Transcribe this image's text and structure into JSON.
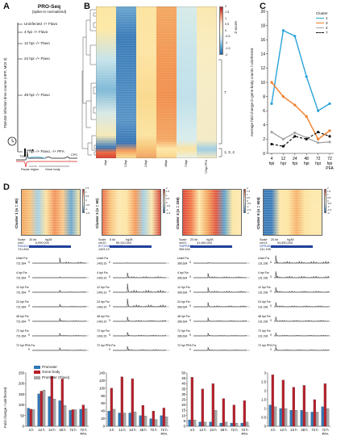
{
  "panel_a": {
    "letter": "A",
    "title": "PRO-Seq",
    "subtitle": "(spike-in normalized)",
    "vertical_label": "TMAGE infection time course (HFF, MOI 3)",
    "timepoints": [
      "Uninfected -/+ Flavo",
      "4 hpi -/+ Flavo",
      "12 hpi -/+ Flavo",
      "24 hpi -/+ Flavo",
      "48 hpi -/+ Flavo",
      "72 hpi -/+ Flavo, -/+ PFA"
    ],
    "tss": "TSS",
    "cps": "CPS",
    "pause_region": "Pause region",
    "gene_body": "Gene body"
  },
  "panel_b": {
    "letter": "B",
    "columns": [
      "4hpi",
      "12hpi",
      "24hpi",
      "48hpi",
      "72hpi",
      "72hpi PFA"
    ],
    "colorbar_label": "Z-score",
    "colorbar_ticks": [
      "2",
      "1.5",
      "1",
      "0.5",
      "0",
      "-0.5",
      "-1",
      "-1.5",
      "-2"
    ],
    "cluster_labels": [
      "7",
      "1, 3, 4"
    ]
  },
  "panel_c": {
    "letter": "C",
    "ylabel": "Average fold change in gene body counts / uninfected",
    "legend_title": "Cluster",
    "colors": {
      "c1": "#2aa3d8",
      "c3": "#f07f2a",
      "c4": "#a6a6a6",
      "c7": "#111111"
    }
  },
  "chart_data": [
    {
      "type": "line",
      "x": [
        "4 hpi",
        "12 hpi",
        "24 hpi",
        "48 hpi",
        "72 hpi",
        "72 hpi PFA"
      ],
      "ylim": [
        0,
        20
      ],
      "yticks": [
        "0",
        "2",
        "4",
        "6",
        "8",
        "10",
        "12",
        "14",
        "16",
        "18",
        "20"
      ],
      "series": [
        {
          "name": "1",
          "values": [
            7.0,
            17.3,
            16.5,
            10.8,
            6.0,
            7.0
          ],
          "color": "#2aa3d8",
          "dash": false
        },
        {
          "name": "3",
          "values": [
            10.0,
            8.0,
            6.8,
            5.2,
            2.0,
            3.2
          ],
          "color": "#f07f2a",
          "dash": false
        },
        {
          "name": "4",
          "values": [
            3.0,
            2.0,
            2.9,
            2.2,
            1.5,
            1.6
          ],
          "color": "#a6a6a6",
          "dash": false
        },
        {
          "name": "7",
          "values": [
            1.3,
            1.0,
            2.4,
            2.0,
            3.0,
            2.4
          ],
          "color": "#111111",
          "dash": true
        }
      ]
    },
    {
      "type": "bar",
      "categories": [
        "4 h",
        "12 h",
        "24 h",
        "48 h",
        "72 h",
        "72 h PFA"
      ],
      "ylim": [
        0,
        250
      ],
      "yticks": [
        "0",
        "50",
        "100",
        "150",
        "200",
        "250"
      ],
      "series": [
        {
          "name": "Promoter",
          "values": [
            85,
            152,
            140,
            120,
            75,
            80
          ]
        },
        {
          "name": "Gene body",
          "values": [
            80,
            165,
            235,
            222,
            78,
            100
          ]
        },
        {
          "name": "Promoter (Flavo)",
          "values": [
            78,
            170,
            128,
            98,
            78,
            82
          ]
        }
      ]
    },
    {
      "type": "bar",
      "categories": [
        "4 h",
        "12 h",
        "24 h",
        "48 h",
        "72 h",
        "72 h PFA"
      ],
      "ylim": [
        0,
        140
      ],
      "yticks": [
        "0",
        "20",
        "40",
        "60",
        "80",
        "100",
        "120",
        "140"
      ],
      "series": [
        {
          "name": "Promoter",
          "values": [
            40,
            35,
            35,
            28,
            20,
            28
          ]
        },
        {
          "name": "Gene body",
          "values": [
            100,
            130,
            125,
            55,
            40,
            48
          ]
        },
        {
          "name": "Promoter (Flavo)",
          "values": [
            45,
            35,
            38,
            27,
            18,
            25
          ]
        }
      ]
    },
    {
      "type": "bar",
      "categories": [
        "4 h",
        "12 h",
        "24 h",
        "48 h",
        "72 h",
        "72 h PFA"
      ],
      "ylim": [
        0,
        50
      ],
      "yticks": [
        "0",
        "5",
        "10",
        "15",
        "20",
        "25",
        "30",
        "35",
        "40",
        "45",
        "50"
      ],
      "series": [
        {
          "name": "Promoter",
          "values": [
            6,
            4,
            4,
            3,
            3,
            3
          ]
        },
        {
          "name": "Gene body",
          "values": [
            46,
            35,
            40,
            26,
            20,
            24
          ]
        },
        {
          "name": "Promoter (Flavo)",
          "values": [
            6,
            4,
            15,
            4,
            3,
            4
          ]
        }
      ]
    },
    {
      "type": "bar",
      "categories": [
        "4 h",
        "12 h",
        "24 h",
        "48 h",
        "72 h",
        "72 h PFA"
      ],
      "ylim": [
        0,
        3
      ],
      "yticks": [
        "0",
        "0.5",
        "1",
        "1.5",
        "2",
        "2.5",
        "3"
      ],
      "series": [
        {
          "name": "Promoter",
          "values": [
            1.2,
            1.0,
            0.9,
            0.9,
            0.8,
            1.1
          ]
        },
        {
          "name": "Gene body",
          "values": [
            2.9,
            2.6,
            2.2,
            2.3,
            1.5,
            2.4
          ]
        },
        {
          "name": "Promoter (Flavo)",
          "values": [
            1.1,
            1.0,
            0.9,
            0.8,
            0.8,
            1.0
          ]
        }
      ]
    }
  ],
  "panel_d": {
    "letter": "D",
    "clusters": [
      {
        "label": "Cluster 1 (n = 90)",
        "gene": "RSAD2/RSAD2",
        "refgene": "RSAD2/NM_080657",
        "loc": "chr2",
        "scale": "10 kb",
        "genome": "hg38",
        "coord": "6,990,000",
        "ymax": "721.694",
        "colorbar": [
          "1.5",
          "1",
          "0.5",
          "0",
          "-0.5",
          "-1",
          "-1.5"
        ]
      },
      {
        "label": "Cluster 3 (n = 60)",
        "gene": "IFIT2",
        "refgene": "IFIT2/NM_001547",
        "loc": "chr10",
        "scale": "5 kb",
        "genome": "hg38",
        "coord": "89,310,000",
        "ymax": "1403.19",
        "colorbar": [
          "2",
          "1.5",
          "1",
          "0.5",
          "0",
          "-0.5",
          "-1",
          "-1.5"
        ]
      },
      {
        "label": "Cluster 4 (n = 336)",
        "gene": "TMPRSS2",
        "refgene": "TMPRSS2",
        "loc": "chr21",
        "scale": "20 kb",
        "genome": "hg38",
        "coord": "41,450,000",
        "ymax": "396.634",
        "colorbar": [
          "2",
          "1.5",
          "1",
          "0.5",
          "0",
          "-0.5",
          "-1",
          "-1.5",
          "-2"
        ]
      },
      {
        "label": "Cluster 8 (n = 604)",
        "gene": "GPR180",
        "refgene": "GPR180/NM_180989",
        "loc": "chr13",
        "scale": "20 kb",
        "genome": "hg38",
        "coord": "94,650,000",
        "ymax": "131.196",
        "colorbar": [
          "2",
          "1.5",
          "1",
          "0.5",
          "0",
          "-0.5",
          "-1",
          "-1.5",
          "-2"
        ]
      }
    ],
    "track_labels": [
      "Uninf Fw",
      "4 hpi Fw",
      "12 hpi Fw",
      "24 hpi Fw",
      "48 hpi Fw",
      "72 hpi Fw",
      "72 hpi PFA Fw"
    ],
    "track_zero": "0",
    "scale_word": "Scale",
    "bar_ylabel": "Fold change / uninfected",
    "bar_legend": [
      "Promoter",
      "Gene body",
      "Promoter (Flavo)"
    ],
    "bar_colors": {
      "promoter": "#2e78b8",
      "gene_body": "#b81e2a",
      "flavo": "#a9a9a9"
    }
  }
}
